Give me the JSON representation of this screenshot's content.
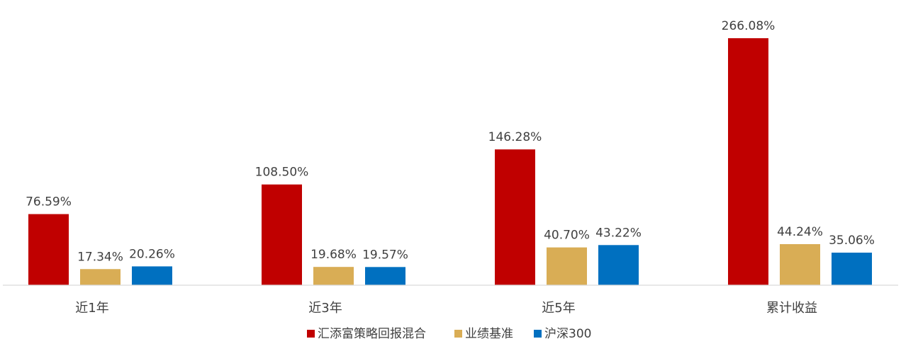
{
  "chart_data": {
    "type": "bar",
    "categories": [
      "近1年",
      "近3年",
      "近5年",
      "累计收益"
    ],
    "series": [
      {
        "name": "汇添富策略回报混合",
        "values": [
          76.59,
          108.5,
          146.28,
          266.08
        ],
        "labels": [
          "76.59%",
          "108.50%",
          "146.28%",
          "266.08%"
        ]
      },
      {
        "name": "业绩基准",
        "values": [
          17.34,
          19.68,
          40.7,
          44.24
        ],
        "labels": [
          "17.34%",
          "19.68%",
          "40.70%",
          "44.24%"
        ]
      },
      {
        "name": "沪深300",
        "values": [
          20.26,
          19.57,
          43.22,
          35.06
        ],
        "labels": [
          "20.26%",
          "19.57%",
          "43.22%",
          "35.06%"
        ]
      }
    ],
    "unit": "%",
    "ylim": [
      0,
      290
    ],
    "grid": false,
    "legend_position": "bottom-center",
    "colors": [
      "#c00000",
      "#d9ad55",
      "#0070c0"
    ],
    "title": "",
    "xlabel": "",
    "ylabel": ""
  }
}
